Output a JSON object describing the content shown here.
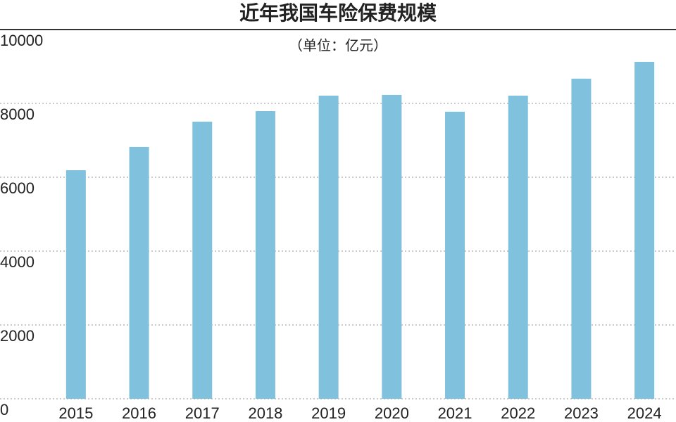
{
  "chart_data": {
    "type": "bar",
    "title": "近年我国车险保费规模",
    "subtitle": "（单位：亿元）",
    "categories": [
      "2015",
      "2016",
      "2017",
      "2018",
      "2019",
      "2020",
      "2021",
      "2022",
      "2023",
      "2024"
    ],
    "values": [
      6190,
      6820,
      7505,
      7790,
      8210,
      8230,
      7775,
      8210,
      8670,
      9125
    ],
    "color": "#80c1dd",
    "ylim": [
      0,
      10000
    ],
    "yticks": [
      0,
      2000,
      4000,
      6000,
      8000,
      10000
    ],
    "grid": true
  }
}
